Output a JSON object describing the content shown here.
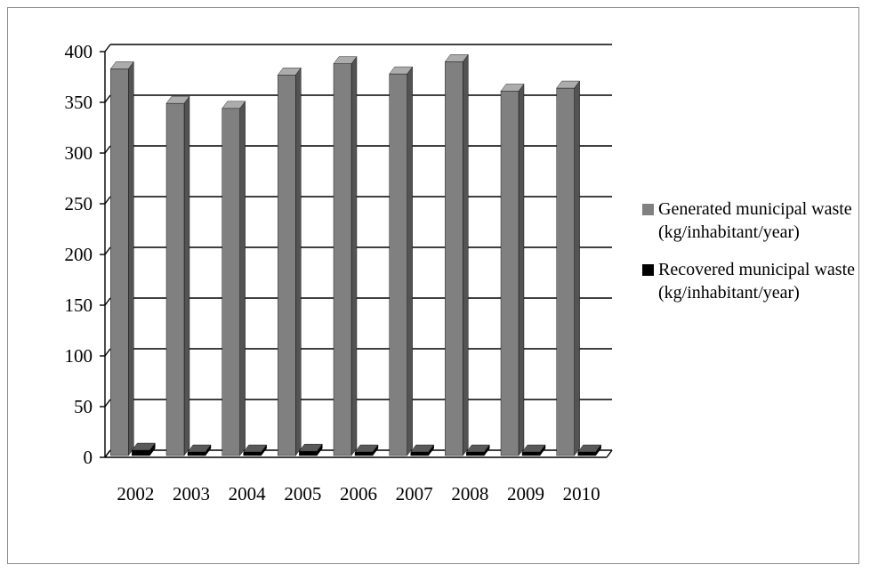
{
  "chart_data": {
    "type": "bar",
    "categories": [
      "2002",
      "2003",
      "2004",
      "2005",
      "2006",
      "2007",
      "2008",
      "2009",
      "2010"
    ],
    "series": [
      {
        "name": "Generated municipal waste (kg/inhabitant/year)",
        "color": "#808080",
        "values": [
          383,
          349,
          344,
          377,
          388,
          378,
          390,
          361,
          364
        ]
      },
      {
        "name": "Recovered municipal waste (kg/inhabitant/year)",
        "color": "#000000",
        "values": [
          7,
          0,
          3,
          6,
          1,
          0,
          1,
          3,
          3
        ]
      }
    ],
    "yticks": [
      "0",
      "50",
      "100",
      "150",
      "200",
      "250",
      "300",
      "350",
      "400"
    ],
    "ylim": [
      0,
      400
    ],
    "grid": true,
    "legend_position": "right",
    "title": "",
    "xlabel": "",
    "ylabel": ""
  }
}
